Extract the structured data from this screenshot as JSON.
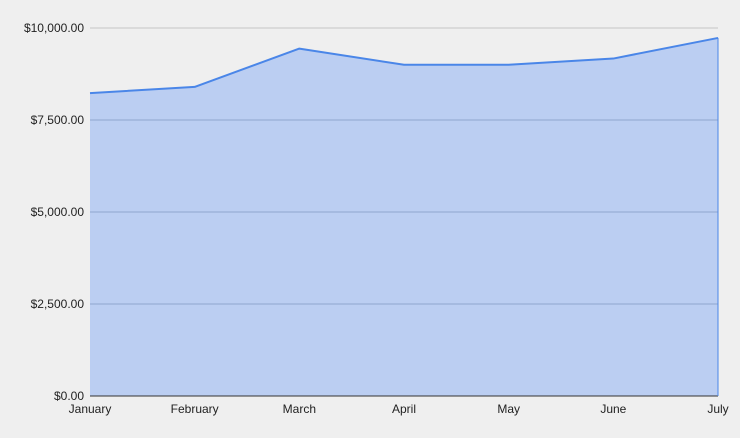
{
  "chart_data": {
    "type": "area",
    "title": "",
    "xlabel": "",
    "ylabel": "",
    "categories": [
      "January",
      "February",
      "March",
      "April",
      "May",
      "June",
      "July"
    ],
    "series": [
      {
        "values": [
          8230,
          8400,
          9440,
          9000,
          9000,
          9170,
          9730
        ]
      }
    ],
    "ylim": [
      0,
      10000
    ],
    "yticks": [
      0,
      2500,
      5000,
      7500,
      10000
    ],
    "ytick_labels": [
      "$0.00",
      "$2,500.00",
      "$5,000.00",
      "$7,500.00",
      "$10,000.00"
    ],
    "grid": true,
    "legend": "none",
    "colors": {
      "background": "#efefef",
      "line": "#4a86e8",
      "fill": "#bbcef2",
      "gridline": "#c4c4c4",
      "gridline_over_fill": "#8fa6cf",
      "axis": "#333333"
    }
  }
}
